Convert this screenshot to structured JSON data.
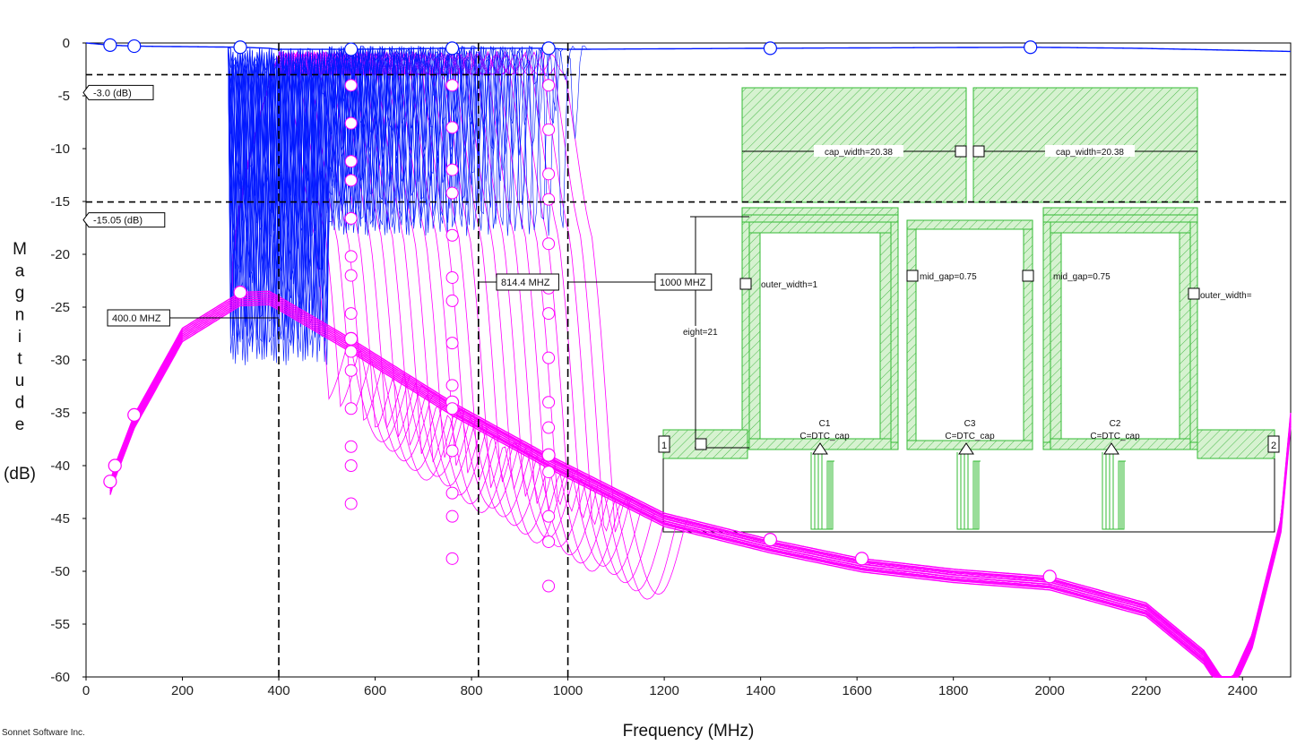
{
  "footer": "Sonnet Software Inc.",
  "chart_data": {
    "type": "line",
    "xlabel": "Frequency (MHz)",
    "ylabel_letters": [
      "M",
      "a",
      "g",
      "n",
      "i",
      "t",
      "u",
      "d",
      "e"
    ],
    "ylabel_unit": "(dB)",
    "xlim": [
      0,
      2500
    ],
    "ylim": [
      -60,
      0
    ],
    "x_ticks": [
      "0",
      "200",
      "400",
      "600",
      "800",
      "1000",
      "1200",
      "1400",
      "1600",
      "1800",
      "2000",
      "2200",
      "2400"
    ],
    "y_ticks": [
      "0",
      "-5",
      "-10",
      "-15",
      "-20",
      "-25",
      "-30",
      "-35",
      "-40",
      "-45",
      "-50",
      "-55",
      "-60"
    ],
    "colors": {
      "s11": "#0018ff",
      "s21": "#ff00ff",
      "layout": "#33bb33",
      "grid": "#000000"
    },
    "hlines": [
      {
        "y": -3.0,
        "label": "-3.0  (dB)"
      },
      {
        "y": -15.05,
        "label": "-15.05  (dB)"
      }
    ],
    "vlines": [
      {
        "x": 400,
        "label": "400.0 MHZ"
      },
      {
        "x": 814.4,
        "label": "814.4 MHZ"
      },
      {
        "x": 1000,
        "label": "1000 MHZ"
      }
    ],
    "series": [
      {
        "color": "#0018ff",
        "description_shape": "passband_ripple",
        "x": [
          0,
          50,
          100,
          320,
          380,
          395,
          550,
          760,
          960,
          1000,
          1420,
          1960,
          2180,
          2500
        ],
        "values": [
          0.0,
          -0.2,
          -0.3,
          -0.4,
          -0.5,
          -0.6,
          -0.6,
          -0.5,
          -0.5,
          -0.6,
          -0.5,
          -0.4,
          -0.5,
          -0.8
        ]
      },
      {
        "color": "#ff00ff",
        "x": [
          50,
          60,
          100,
          200,
          320,
          380,
          400,
          550,
          760,
          960,
          1200,
          1420,
          1610,
          1800,
          2000,
          2200,
          2320,
          2370,
          2420,
          2480,
          2500
        ],
        "values": [
          -41.5,
          -40.0,
          -35.2,
          -27.0,
          -23.6,
          -23.5,
          -24.0,
          -28.0,
          -34.0,
          -39.0,
          -44.5,
          -47.0,
          -48.8,
          -49.8,
          -50.5,
          -53.0,
          -57.5,
          -61.0,
          -56.0,
          -45.0,
          -35.0
        ]
      }
    ],
    "layout_inset": {
      "dimensions": [
        "cap_width=20.38",
        "cap_width=20.38",
        "outer_width=1",
        "mid_gap=0.75",
        "mid_gap=0.75",
        "outer_width=",
        "eight=21"
      ],
      "components": [
        {
          "name": "C1",
          "value": "C=DTC_cap"
        },
        {
          "name": "C3",
          "value": "C=DTC_cap"
        },
        {
          "name": "C2",
          "value": "C=DTC_cap"
        }
      ],
      "ports": [
        "1",
        "2"
      ]
    }
  }
}
